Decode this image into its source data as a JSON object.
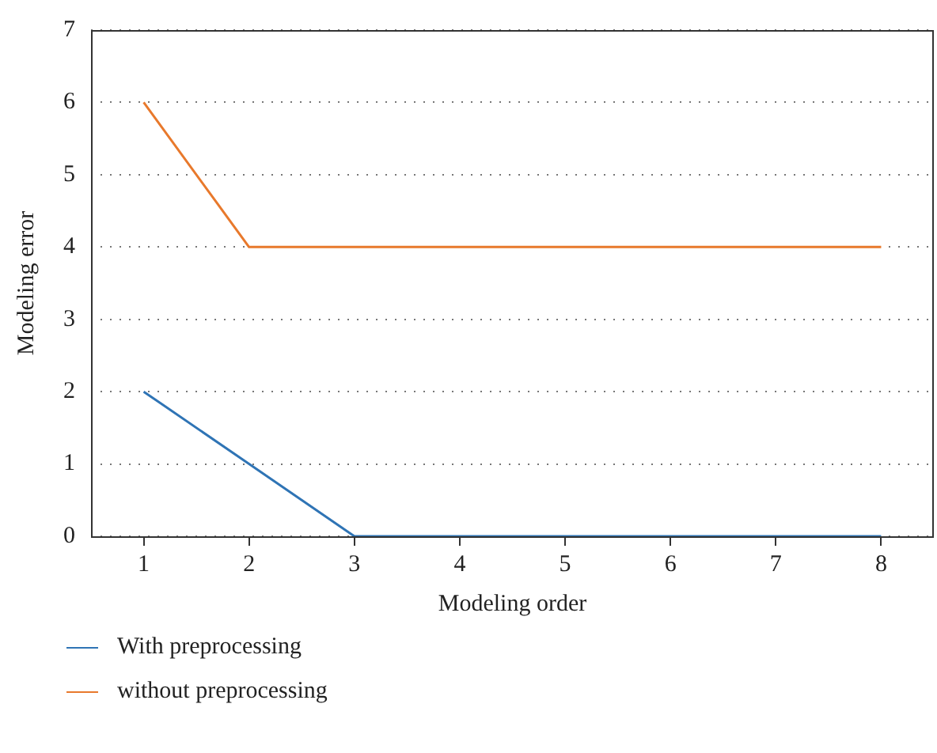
{
  "chart_data": {
    "type": "line",
    "xlabel": "Modeling order",
    "ylabel": "Modeling error",
    "x": [
      1,
      2,
      3,
      4,
      5,
      6,
      7,
      8
    ],
    "series": [
      {
        "name": "With preprocessing",
        "color": "#2f74b5",
        "values": [
          2,
          1,
          0,
          0,
          0,
          0,
          0,
          0
        ]
      },
      {
        "name": "without preprocessing",
        "color": "#e8792c",
        "values": [
          6,
          4,
          4,
          4,
          4,
          4,
          4,
          4
        ]
      }
    ],
    "xlim": [
      0.5,
      8.5
    ],
    "xticks": [
      1,
      2,
      3,
      4,
      5,
      6,
      7,
      8
    ],
    "ylim": [
      0,
      7
    ],
    "yticks": [
      0,
      1,
      2,
      3,
      4,
      5,
      6,
      7
    ],
    "grid": "y",
    "legend": "bottom",
    "marker": "none",
    "line_style": "solid"
  }
}
